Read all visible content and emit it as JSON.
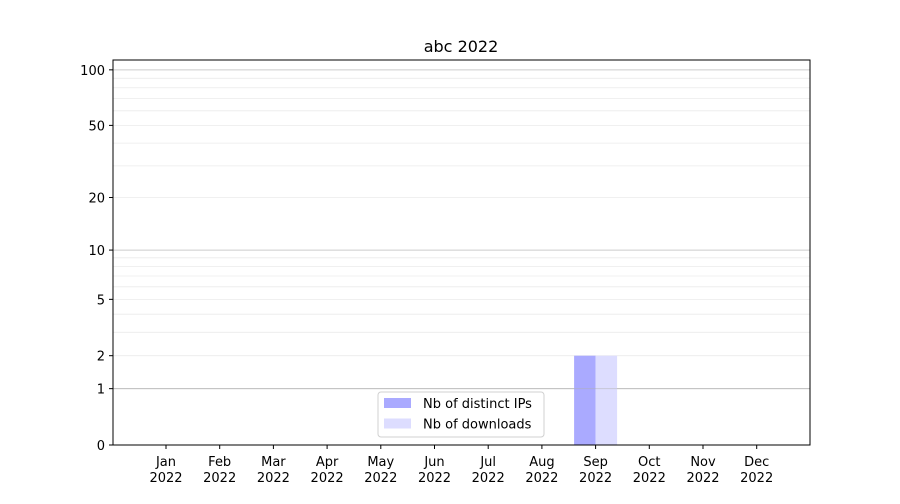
{
  "chart_data": {
    "type": "bar",
    "title": "abc 2022",
    "xlabel": "",
    "ylabel": "",
    "y_scale": "log(1+y)",
    "ylim": [
      0,
      113
    ],
    "yticks": [
      0,
      1,
      2,
      5,
      10,
      20,
      50,
      100
    ],
    "grid": true,
    "legend_placement": "lower center",
    "categories": [
      "Jan\n2022",
      "Feb\n2022",
      "Mar\n2022",
      "Apr\n2022",
      "May\n2022",
      "Jun\n2022",
      "Jul\n2022",
      "Aug\n2022",
      "Sep\n2022",
      "Oct\n2022",
      "Nov\n2022",
      "Dec\n2022"
    ],
    "series": [
      {
        "name": "Nb of distinct IPs",
        "color": "#aaaaff",
        "values": [
          0,
          0,
          0,
          0,
          0,
          0,
          0,
          0,
          2,
          0,
          0,
          0
        ]
      },
      {
        "name": "Nb of downloads",
        "color": "#ddddff",
        "values": [
          0,
          0,
          0,
          0,
          0,
          0,
          0,
          0,
          2,
          0,
          0,
          0
        ]
      }
    ]
  }
}
